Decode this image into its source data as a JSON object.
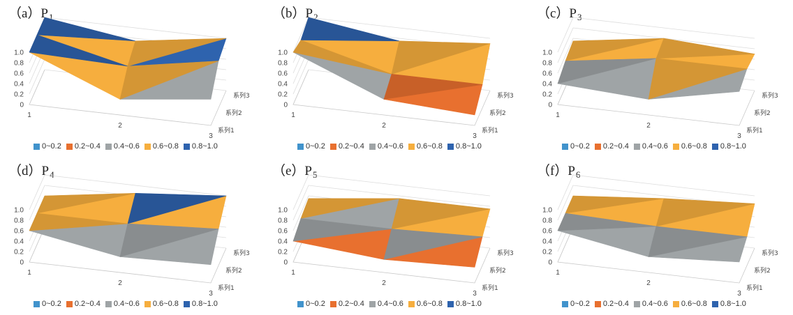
{
  "legend": [
    {
      "label": "0~0.2",
      "color": "#4193cc"
    },
    {
      "label": "0.2~0.4",
      "color": "#e8702f"
    },
    {
      "label": "0.4~0.6",
      "color": "#9fa4a6"
    },
    {
      "label": "0.6~0.8",
      "color": "#f6ae3e"
    },
    {
      "label": "0.8~1.0",
      "color": "#2e63ae"
    }
  ],
  "chart_data": [
    {
      "type": "surface",
      "title_prefix": "（a）P",
      "title_sub": "1",
      "categories": [
        "1",
        "2",
        "3"
      ],
      "zticks": [
        "0",
        "0.2",
        "0.4",
        "0.6",
        "0.8",
        "1.0"
      ],
      "series": [
        {
          "name": "系列1",
          "values": [
            1.0,
            0.3,
            0.5
          ]
        },
        {
          "name": "系列2",
          "values": [
            1.0,
            0.6,
            0.9
          ]
        },
        {
          "name": "系列3",
          "values": [
            1.0,
            0.75,
            1.0
          ]
        }
      ]
    },
    {
      "type": "surface",
      "title_prefix": "（b）P",
      "title_sub": "2",
      "categories": [
        "1",
        "2",
        "3"
      ],
      "zticks": [
        "0",
        "0.2",
        "0.4",
        "0.6",
        "0.8",
        "1.0"
      ],
      "series": [
        {
          "name": "系列1",
          "values": [
            1.0,
            0.3,
            0.2
          ]
        },
        {
          "name": "系列2",
          "values": [
            0.9,
            0.45,
            0.45
          ]
        },
        {
          "name": "系列3",
          "values": [
            1.0,
            0.75,
            0.9
          ]
        }
      ]
    },
    {
      "type": "surface",
      "title_prefix": "（c）P",
      "title_sub": "3",
      "categories": [
        "1",
        "2",
        "3"
      ],
      "zticks": [
        "0",
        "0.2",
        "0.4",
        "0.6",
        "0.8",
        "1.0"
      ],
      "series": [
        {
          "name": "系列1",
          "values": [
            0.4,
            0.3,
            0.65
          ]
        },
        {
          "name": "系列2",
          "values": [
            0.5,
            0.75,
            0.75
          ]
        },
        {
          "name": "系列3",
          "values": [
            0.55,
            0.8,
            0.7
          ]
        }
      ]
    },
    {
      "type": "surface",
      "title_prefix": "（d）P",
      "title_sub": "4",
      "categories": [
        "1",
        "2",
        "3"
      ],
      "zticks": [
        "0",
        "0.2",
        "0.4",
        "0.6",
        "0.8",
        "1.0"
      ],
      "series": [
        {
          "name": "系列1",
          "values": [
            0.6,
            0.3,
            0.35
          ]
        },
        {
          "name": "系列2",
          "values": [
            0.6,
            0.6,
            0.7
          ]
        },
        {
          "name": "系列3",
          "values": [
            0.6,
            0.85,
            1.0
          ]
        }
      ]
    },
    {
      "type": "surface",
      "title_prefix": "（e）P",
      "title_sub": "5",
      "categories": [
        "1",
        "2",
        "3"
      ],
      "zticks": [
        "0",
        "0.2",
        "0.4",
        "0.6",
        "0.8",
        "1.0"
      ],
      "series": [
        {
          "name": "系列1",
          "values": [
            0.4,
            0.25,
            0.3
          ]
        },
        {
          "name": "系列2",
          "values": [
            0.5,
            0.5,
            0.55
          ]
        },
        {
          "name": "系列3",
          "values": [
            0.55,
            0.75,
            0.75
          ]
        }
      ]
    },
    {
      "type": "surface",
      "title_prefix": "（f）P",
      "title_sub": "6",
      "categories": [
        "1",
        "2",
        "3"
      ],
      "zticks": [
        "0",
        "0.2",
        "0.4",
        "0.6",
        "0.8",
        "1.0"
      ],
      "series": [
        {
          "name": "系列1",
          "values": [
            0.6,
            0.3,
            0.4
          ]
        },
        {
          "name": "系列2",
          "values": [
            0.6,
            0.55,
            0.55
          ]
        },
        {
          "name": "系列3",
          "values": [
            0.6,
            0.75,
            0.85
          ]
        }
      ]
    }
  ]
}
